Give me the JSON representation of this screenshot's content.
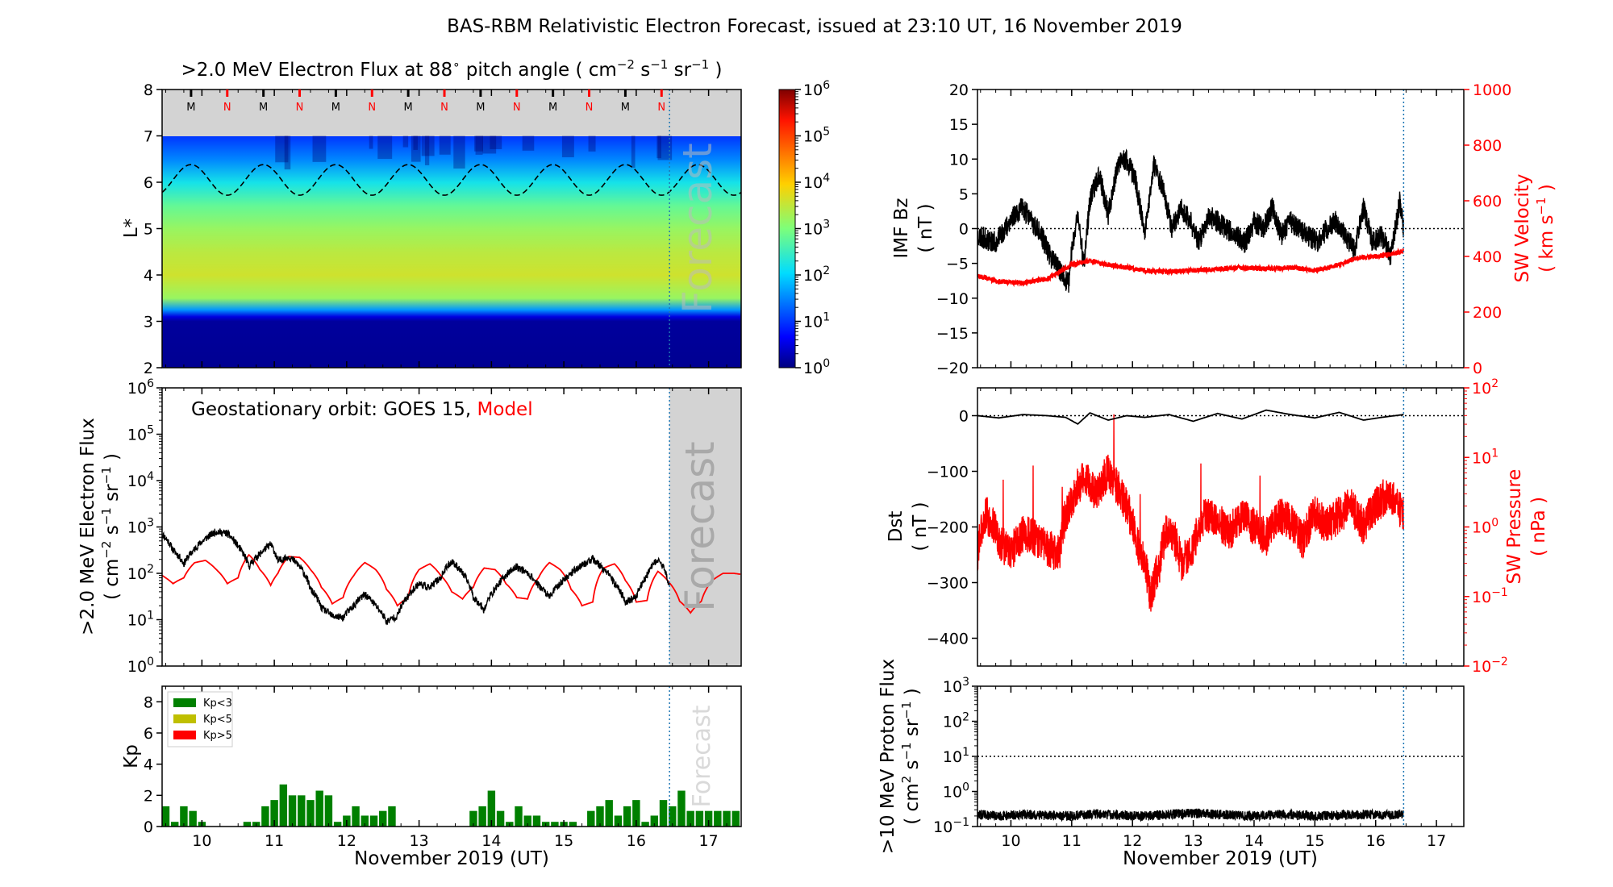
{
  "title": "BAS-RBM Relativistic Electron Forecast, issued at 23:10 UT, 16 November 2019",
  "colors": {
    "observed": "#000000",
    "model": "#ff0000",
    "forecast_shade": "#d3d3d3",
    "forecast_line": "#1f77b4",
    "kp_low": "#008000",
    "kp_mid": "#bfbf00",
    "kp_high": "#ff0000"
  },
  "x_axis": {
    "label": "November 2019 (UT)",
    "min": 9.45,
    "max": 17.45,
    "ticks": [
      "10",
      "11",
      "12",
      "13",
      "14",
      "15",
      "16",
      "17"
    ],
    "forecast_start": 16.46
  },
  "chart_data": [
    {
      "id": "lstar_flux",
      "type": "heatmap",
      "title_prefix": ">2.0 MeV Electron Flux at 88",
      "title_degree": "∘",
      "title_mid": " pitch angle ( cm",
      "title_unit_exp1": "−2",
      "title_unit_s": " s",
      "title_unit_exp2": "−1",
      "title_unit_sr": " sr",
      "title_unit_exp3": "−1",
      "title_close": " )",
      "ylabel": "L*",
      "ylim": [
        2,
        8
      ],
      "yticks": [
        "2",
        "3",
        "4",
        "5",
        "6",
        "7",
        "8"
      ],
      "forecast_label": "Forecast",
      "colorbar": {
        "scale": "log",
        "min": 1,
        "max": 1000000,
        "ticks": [
          {
            "base": "10",
            "exp": "0"
          },
          {
            "base": "10",
            "exp": "1"
          },
          {
            "base": "10",
            "exp": "2"
          },
          {
            "base": "10",
            "exp": "3"
          },
          {
            "base": "10",
            "exp": "4"
          },
          {
            "base": "10",
            "exp": "5"
          },
          {
            "base": "10",
            "exp": "6"
          }
        ]
      },
      "flux_profile": [
        {
          "L": 2.0,
          "log_flux": 0.1
        },
        {
          "L": 3.0,
          "log_flux": 0.15
        },
        {
          "L": 3.1,
          "log_flux": 0.5
        },
        {
          "L": 3.25,
          "log_flux": 1.6
        },
        {
          "L": 3.5,
          "log_flux": 3.2
        },
        {
          "L": 4.0,
          "log_flux": 3.6
        },
        {
          "L": 4.5,
          "log_flux": 3.45
        },
        {
          "L": 5.0,
          "log_flux": 3.2
        },
        {
          "L": 5.5,
          "log_flux": 2.8
        },
        {
          "L": 6.0,
          "log_flux": 2.2
        },
        {
          "L": 6.5,
          "log_flux": 1.5
        },
        {
          "L": 7.0,
          "log_flux": 1.0
        }
      ],
      "orbit_markers": [
        {
          "day": 9.85,
          "label": "M"
        },
        {
          "day": 10.35,
          "label": "N"
        },
        {
          "day": 10.85,
          "label": "M"
        },
        {
          "day": 11.35,
          "label": "N"
        },
        {
          "day": 11.85,
          "label": "M"
        },
        {
          "day": 12.35,
          "label": "N"
        },
        {
          "day": 12.85,
          "label": "M"
        },
        {
          "day": 13.35,
          "label": "N"
        },
        {
          "day": 13.85,
          "label": "M"
        },
        {
          "day": 14.35,
          "label": "N"
        },
        {
          "day": 14.85,
          "label": "M"
        },
        {
          "day": 15.35,
          "label": "N"
        },
        {
          "day": 15.85,
          "label": "M"
        },
        {
          "day": 16.35,
          "label": "N"
        }
      ],
      "geo_orbit_L": {
        "mean": 6.05,
        "amplitude": 0.33
      }
    },
    {
      "id": "geo_flux",
      "type": "line",
      "annotation_obs": "Geostationary orbit:   GOES 15,",
      "annotation_model": "Model",
      "ylabel_line1": ">2.0 MeV Electron Flux",
      "ylabel_line2_a": "( cm",
      "ylabel_line2_exp1": "−2",
      "ylabel_line2_b": " s",
      "ylabel_line2_exp2": "−1",
      "ylabel_line2_c": " sr",
      "ylabel_line2_exp3": "−1",
      "ylabel_line2_d": " )",
      "yscale": "log",
      "ylim": [
        1,
        1000000
      ],
      "yticks": [
        {
          "base": "10",
          "exp": "0"
        },
        {
          "base": "10",
          "exp": "1"
        },
        {
          "base": "10",
          "exp": "2"
        },
        {
          "base": "10",
          "exp": "3"
        },
        {
          "base": "10",
          "exp": "4"
        },
        {
          "base": "10",
          "exp": "5"
        },
        {
          "base": "10",
          "exp": "6"
        }
      ],
      "forecast_label": "Forecast",
      "series": [
        {
          "name": "GOES 15",
          "x": [
            9.45,
            9.6,
            9.75,
            9.9,
            10.05,
            10.2,
            10.35,
            10.5,
            10.65,
            10.8,
            10.95,
            11.05,
            11.2,
            11.35,
            11.5,
            11.65,
            11.8,
            11.95,
            12.1,
            12.25,
            12.4,
            12.55,
            12.7,
            12.85,
            13.0,
            13.15,
            13.3,
            13.45,
            13.6,
            13.75,
            13.9,
            14.05,
            14.2,
            14.35,
            14.5,
            14.65,
            14.8,
            14.95,
            15.1,
            15.25,
            15.4,
            15.55,
            15.7,
            15.85,
            16.0,
            16.15,
            16.3,
            16.45
          ],
          "y": [
            700,
            320,
            160,
            330,
            560,
            800,
            720,
            380,
            140,
            260,
            420,
            180,
            230,
            140,
            45,
            18,
            12,
            11,
            20,
            35,
            20,
            9,
            12,
            32,
            60,
            48,
            80,
            180,
            100,
            30,
            16,
            45,
            90,
            140,
            100,
            55,
            30,
            60,
            100,
            150,
            200,
            120,
            60,
            24,
            30,
            90,
            200,
            60
          ]
        },
        {
          "name": "Model",
          "x": [
            9.45,
            9.6,
            9.75,
            9.9,
            10.05,
            10.2,
            10.35,
            10.5,
            10.65,
            10.8,
            10.95,
            11.05,
            11.2,
            11.35,
            11.5,
            11.65,
            11.8,
            11.95,
            12.1,
            12.25,
            12.4,
            12.55,
            12.7,
            12.85,
            13.0,
            13.15,
            13.3,
            13.45,
            13.6,
            13.75,
            13.9,
            14.05,
            14.2,
            14.35,
            14.5,
            14.65,
            14.8,
            14.95,
            15.1,
            15.25,
            15.4,
            15.55,
            15.7,
            15.85,
            16.0,
            16.15,
            16.3,
            16.45,
            16.6,
            16.75,
            16.9,
            17.05,
            17.2,
            17.35,
            17.45
          ],
          "y": [
            90,
            60,
            80,
            170,
            190,
            120,
            60,
            80,
            250,
            120,
            55,
            100,
            230,
            220,
            120,
            50,
            22,
            30,
            90,
            170,
            120,
            45,
            20,
            30,
            120,
            160,
            90,
            40,
            28,
            50,
            130,
            120,
            60,
            30,
            28,
            80,
            170,
            120,
            45,
            20,
            24,
            130,
            160,
            70,
            24,
            26,
            110,
            65,
            25,
            14,
            25,
            70,
            100,
            100,
            95
          ]
        }
      ]
    },
    {
      "id": "kp",
      "type": "bar",
      "ylabel": "Kp",
      "ylim": [
        0,
        9
      ],
      "yticks": [
        "0",
        "2",
        "4",
        "6",
        "8"
      ],
      "forecast_label": "Forecast",
      "legend": [
        {
          "label": "Kp<3",
          "color": "#008000"
        },
        {
          "label": "Kp<5",
          "color": "#bfbf00"
        },
        {
          "label": "Kp>5",
          "color": "#ff0000"
        }
      ],
      "x_start": 9.5,
      "bin_days": 0.125,
      "values": [
        1.3,
        0.3,
        1.3,
        1.0,
        0.3,
        0,
        0,
        0,
        0,
        0.3,
        0.3,
        1.3,
        1.7,
        2.7,
        2.0,
        2.0,
        1.7,
        2.3,
        2.0,
        0.3,
        0.7,
        1.3,
        0.7,
        0.7,
        1.0,
        1.3,
        0,
        0,
        0,
        0,
        0,
        0,
        0,
        0,
        1.0,
        1.3,
        2.3,
        1.0,
        0.3,
        1.3,
        0.7,
        0.7,
        0.3,
        0.3,
        0.3,
        0.3,
        0,
        1.0,
        1.3,
        1.7,
        0.7,
        1.3,
        1.7,
        0.3,
        0.7,
        1.7,
        1.3,
        2.3,
        1.0,
        1.0,
        1.0,
        1.0,
        1.0,
        1.0
      ]
    },
    {
      "id": "imf_bz",
      "type": "line",
      "ylabel_line1": "IMF Bz",
      "ylabel_line2": "( nT )",
      "ylim": [
        -20,
        20
      ],
      "yticks": [
        "−20",
        "−15",
        "−10",
        "−5",
        "0",
        "5",
        "10",
        "15",
        "20"
      ],
      "y2label_line1": "SW Velocity",
      "y2label_line2_a": "( km s",
      "y2label_line2_exp": "−1",
      "y2label_line2_b": " )",
      "y2lim": [
        0,
        1000
      ],
      "y2ticks": [
        "0",
        "200",
        "400",
        "600",
        "800",
        "1000"
      ],
      "series": [
        {
          "name": "IMF Bz",
          "x": [
            9.45,
            9.6,
            9.75,
            9.9,
            10.05,
            10.2,
            10.35,
            10.5,
            10.65,
            10.8,
            10.95,
            11.0,
            11.1,
            11.2,
            11.3,
            11.45,
            11.6,
            11.75,
            11.9,
            12.05,
            12.2,
            12.35,
            12.5,
            12.65,
            12.8,
            12.95,
            13.1,
            13.25,
            13.4,
            13.55,
            13.7,
            13.85,
            14.0,
            14.15,
            14.3,
            14.45,
            14.6,
            14.75,
            14.9,
            15.05,
            15.2,
            15.35,
            15.5,
            15.65,
            15.8,
            15.95,
            16.1,
            16.25,
            16.4,
            16.46
          ],
          "y": [
            -1,
            -1.5,
            -2,
            0,
            2,
            3,
            1,
            -1,
            -4,
            -6,
            -8,
            -3,
            2,
            -5,
            4,
            8,
            2,
            9,
            10,
            7,
            -1,
            9,
            6,
            0,
            3,
            1,
            -2,
            2,
            1,
            0,
            -1,
            -2,
            1,
            0,
            3,
            -1,
            1,
            0,
            -1,
            -2,
            0,
            1,
            -1,
            -3,
            3,
            -2,
            -1,
            -4,
            4,
            0
          ]
        },
        {
          "name": "SW Velocity",
          "axis": "right",
          "x": [
            9.45,
            9.8,
            10.2,
            10.6,
            11.0,
            11.3,
            11.6,
            11.9,
            12.2,
            12.6,
            13.0,
            13.4,
            13.8,
            14.2,
            14.6,
            15.0,
            15.4,
            15.7,
            16.0,
            16.3,
            16.46
          ],
          "y": [
            330,
            310,
            305,
            320,
            370,
            385,
            370,
            360,
            350,
            345,
            350,
            355,
            360,
            355,
            360,
            350,
            370,
            395,
            400,
            410,
            420
          ]
        }
      ]
    },
    {
      "id": "dst_pressure",
      "type": "line",
      "ylabel_line1": "Dst",
      "ylabel_line2": "( nT )",
      "ylim": [
        -450,
        50
      ],
      "yticks": [
        "−400",
        "−300",
        "−200",
        "−100",
        "0"
      ],
      "y2label_line1": "SW Pressure",
      "y2label_line2": "( nPa )",
      "y2scale": "log",
      "y2lim": [
        0.01,
        100
      ],
      "y2ticks": [
        {
          "base": "10",
          "exp": "−2"
        },
        {
          "base": "10",
          "exp": "−1"
        },
        {
          "base": "10",
          "exp": "0"
        },
        {
          "base": "10",
          "exp": "1"
        },
        {
          "base": "10",
          "exp": "2"
        }
      ],
      "series": [
        {
          "name": "Dst",
          "x": [
            9.45,
            9.8,
            10.2,
            10.6,
            10.9,
            11.1,
            11.3,
            11.6,
            11.9,
            12.2,
            12.6,
            13.0,
            13.4,
            13.8,
            14.2,
            14.6,
            15.0,
            15.4,
            15.8,
            16.1,
            16.46
          ],
          "y": [
            0,
            -4,
            2,
            0,
            -3,
            -15,
            5,
            -8,
            0,
            -3,
            2,
            -10,
            4,
            -6,
            10,
            2,
            -4,
            6,
            -8,
            -3,
            2
          ]
        },
        {
          "name": "SW Pressure",
          "axis": "right",
          "x": [
            9.45,
            9.6,
            9.8,
            10.0,
            10.2,
            10.4,
            10.6,
            10.8,
            11.0,
            11.2,
            11.4,
            11.6,
            11.8,
            11.95,
            12.1,
            12.3,
            12.45,
            12.6,
            12.8,
            13.0,
            13.2,
            13.4,
            13.6,
            13.8,
            14.0,
            14.2,
            14.4,
            14.6,
            14.8,
            15.0,
            15.2,
            15.4,
            15.6,
            15.8,
            16.0,
            16.2,
            16.46
          ],
          "y": [
            0.4,
            1.5,
            0.6,
            0.4,
            0.8,
            0.7,
            0.5,
            0.4,
            2.5,
            5,
            3,
            6,
            3,
            1.5,
            0.5,
            0.08,
            0.3,
            1,
            0.3,
            0.5,
            1.5,
            1.2,
            0.8,
            1.5,
            1,
            0.7,
            1.5,
            1.2,
            0.6,
            1.5,
            1,
            1.5,
            2,
            1,
            2,
            3,
            1.5
          ]
        }
      ]
    },
    {
      "id": "proton_flux",
      "type": "line",
      "ylabel_line1": ">10 MeV Proton Flux",
      "ylabel_line2_a": "( cm",
      "ylabel_line2_exp1": "2",
      "ylabel_line2_b": " s",
      "ylabel_line2_exp2": "−1",
      "ylabel_line2_c": " sr",
      "ylabel_line2_exp3": "−1",
      "ylabel_line2_d": " )",
      "yscale": "log",
      "ylim": [
        0.1,
        1000
      ],
      "yticks": [
        {
          "base": "10",
          "exp": "−1"
        },
        {
          "base": "10",
          "exp": "0"
        },
        {
          "base": "10",
          "exp": "1"
        },
        {
          "base": "10",
          "exp": "2"
        },
        {
          "base": "10",
          "exp": "3"
        }
      ],
      "threshold": 10,
      "series": [
        {
          "name": "Proton Flux",
          "x": [
            9.45,
            9.8,
            10.2,
            10.6,
            11.0,
            11.4,
            11.8,
            12.2,
            12.6,
            13.0,
            13.4,
            13.8,
            14.2,
            14.6,
            15.0,
            15.4,
            15.8,
            16.2,
            16.46
          ],
          "y": [
            0.22,
            0.2,
            0.22,
            0.21,
            0.2,
            0.23,
            0.21,
            0.2,
            0.22,
            0.24,
            0.22,
            0.2,
            0.21,
            0.22,
            0.2,
            0.21,
            0.22,
            0.21,
            0.22
          ]
        }
      ]
    }
  ]
}
